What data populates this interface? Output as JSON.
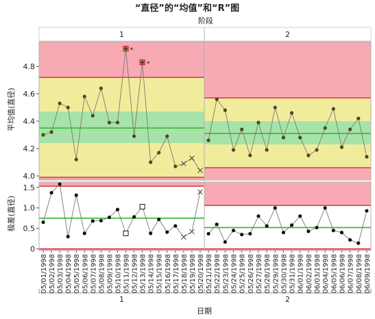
{
  "chart_data": {
    "type": "control-chart",
    "title": "“直径”的“均值”和“R”图",
    "phase_label": "阶段",
    "xlabel": "日期",
    "colors": {
      "red_zone": "#f7aab4",
      "yellow_zone": "#f1ec9c",
      "green_zone": "#a7e3a8",
      "limit_line": "#d9353f",
      "center_line": "#2db52d",
      "point": "#4a4a1a",
      "connector": "#777777",
      "flag": "#cc1f2a"
    },
    "phases": [
      {
        "label": "1",
        "dates": [
          "05/01/1998",
          "05/02/1998",
          "05/03/1998",
          "05/04/1998",
          "05/05/1998",
          "05/06/1998",
          "05/07/1998",
          "05/08/1998",
          "05/09/1998",
          "05/10/1998",
          "05/11/1998",
          "05/12/1998",
          "05/13/1998",
          "05/14/1998",
          "05/15/1998",
          "05/16/1998",
          "05/17/1998",
          "05/18/1998",
          "05/19/1998",
          "05/20/1998"
        ],
        "mean": {
          "values": [
            4.3,
            4.32,
            4.53,
            4.5,
            4.12,
            4.58,
            4.44,
            4.64,
            4.39,
            4.39,
            4.93,
            4.29,
            4.83,
            4.1,
            4.17,
            4.29,
            4.07,
            4.09,
            4.13,
            4.04
          ],
          "ucl": 4.72,
          "center": 4.35,
          "lcl": 3.99,
          "zone_1s": [
            4.24,
            4.47
          ],
          "zone_2s": [
            3.99,
            4.72
          ],
          "flagged": [
            10,
            12
          ],
          "excluded": [
            17,
            18,
            19
          ]
        },
        "range": {
          "values": [
            0.65,
            1.37,
            1.58,
            0.3,
            1.31,
            0.38,
            0.68,
            0.69,
            0.77,
            0.96,
            0.38,
            0.78,
            1.03,
            0.38,
            0.72,
            0.41,
            0.56,
            0.29,
            0.42,
            1.39
          ],
          "ucl": 1.53,
          "center": 0.75,
          "lcl": 0.0,
          "boxed": [
            10,
            12
          ],
          "excluded": [
            17,
            18,
            19
          ]
        }
      },
      {
        "label": "2",
        "dates": [
          "05/21/1998",
          "05/22/1998",
          "05/23/1998",
          "05/24/1998",
          "05/25/1998",
          "05/26/1998",
          "05/27/1998",
          "05/28/1998",
          "05/29/1998",
          "05/30/1998",
          "05/31/1998",
          "06/01/1998",
          "06/02/1998",
          "06/03/1998",
          "06/04/1998",
          "06/05/1998",
          "06/06/1998",
          "06/07/1998",
          "06/08/1998",
          "06/09/1998"
        ],
        "mean": {
          "values": [
            4.26,
            4.56,
            4.48,
            4.19,
            4.34,
            4.15,
            4.39,
            4.19,
            4.5,
            4.28,
            4.46,
            4.28,
            4.15,
            4.19,
            4.35,
            4.49,
            4.21,
            4.34,
            4.42,
            4.14
          ],
          "ucl": 4.57,
          "center": 4.31,
          "lcl": 4.06,
          "zone_1s": [
            4.23,
            4.4
          ],
          "zone_2s": [
            4.06,
            4.57
          ],
          "flagged": [],
          "excluded": []
        },
        "range": {
          "values": [
            0.37,
            0.6,
            0.17,
            0.45,
            0.35,
            0.37,
            0.8,
            0.56,
            1.0,
            0.4,
            0.58,
            0.8,
            0.43,
            0.52,
            1.0,
            0.45,
            0.4,
            0.22,
            0.14,
            0.93
          ],
          "ucl": 1.06,
          "center": 0.52,
          "lcl": 0.0,
          "boxed": [],
          "excluded": []
        }
      }
    ],
    "mean_panel": {
      "ylabel": "平均值(直径)",
      "ylim": [
        3.97,
        4.98
      ],
      "ticks": [
        "4.0",
        "4.2",
        "4.4",
        "4.6",
        "4.8"
      ]
    },
    "range_panel": {
      "ylabel": "极差(直径)",
      "ylim": [
        -0.04,
        1.63
      ],
      "ticks": [
        "0",
        "0.5",
        "1.0",
        "1.5"
      ]
    }
  }
}
